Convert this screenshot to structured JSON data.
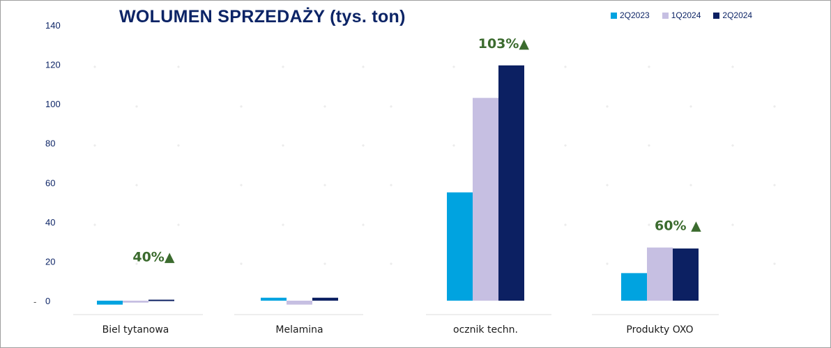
{
  "chart_data": {
    "type": "bar",
    "title": "WOLUMEN SPRZEDAŻY (tys. ton)",
    "categories": [
      "Biel tytanowa",
      "Melamina",
      "​ocznik techn.",
      "Produkty OXO"
    ],
    "series": [
      {
        "name": "2Q2023",
        "color": "#00a3e0",
        "values": [
          -2,
          1.5,
          55,
          14
        ]
      },
      {
        "name": "1Q2024",
        "color": "#c6bfe2",
        "values": [
          -1,
          -2,
          103,
          27
        ]
      },
      {
        "name": "2Q2024",
        "color": "#0c2062",
        "values": [
          0.5,
          1.5,
          119.5,
          26.5
        ]
      }
    ],
    "growth_labels": [
      {
        "category": "Biel tytanowa",
        "text": "40%▲"
      },
      {
        "category": "​ocznik techn.",
        "text": "103%▲"
      },
      {
        "category": "Produkty OXO",
        "text": "60% ▲"
      }
    ],
    "yticks": [
      "140",
      "120",
      "100",
      "80",
      "60",
      "40",
      "20",
      "0"
    ],
    "ytick_values": [
      140,
      120,
      100,
      80,
      60,
      40,
      20,
      0
    ],
    "ylim": [
      -7,
      140
    ],
    "grid": false,
    "legend_position": "top-right",
    "axis_mark": "-"
  }
}
